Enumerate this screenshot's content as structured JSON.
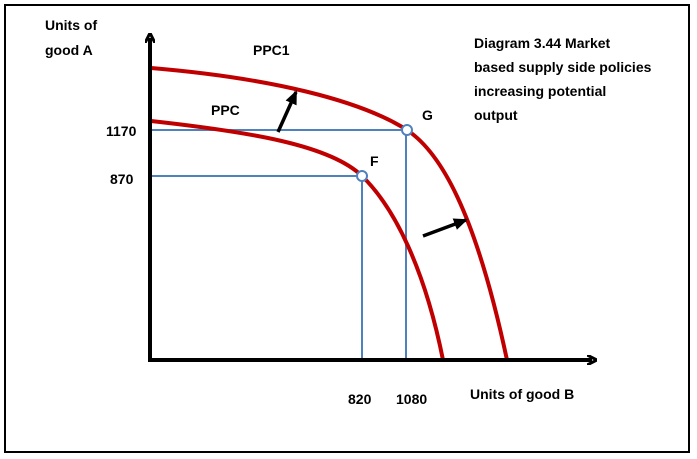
{
  "diagram": {
    "title_lines": [
      "Diagram 3.44 Market",
      "based supply side policies",
      "increasing potential",
      "output"
    ],
    "y_axis_label_lines": [
      "Units of",
      "good A"
    ],
    "x_axis_label": "Units of good B",
    "curves": [
      {
        "name": "PPC",
        "color": "#c00000"
      },
      {
        "name": "PPC1",
        "color": "#c00000"
      }
    ],
    "points": [
      {
        "name": "F",
        "good_a": 870,
        "good_b": 820
      },
      {
        "name": "G",
        "good_a": 1170,
        "good_b": 1080
      }
    ],
    "y_ticks": [
      "1170",
      "870"
    ],
    "x_ticks": [
      "820",
      "1080"
    ],
    "colors": {
      "curve": "#c00000",
      "guide": "#4f81bd",
      "axis": "#000000"
    }
  }
}
